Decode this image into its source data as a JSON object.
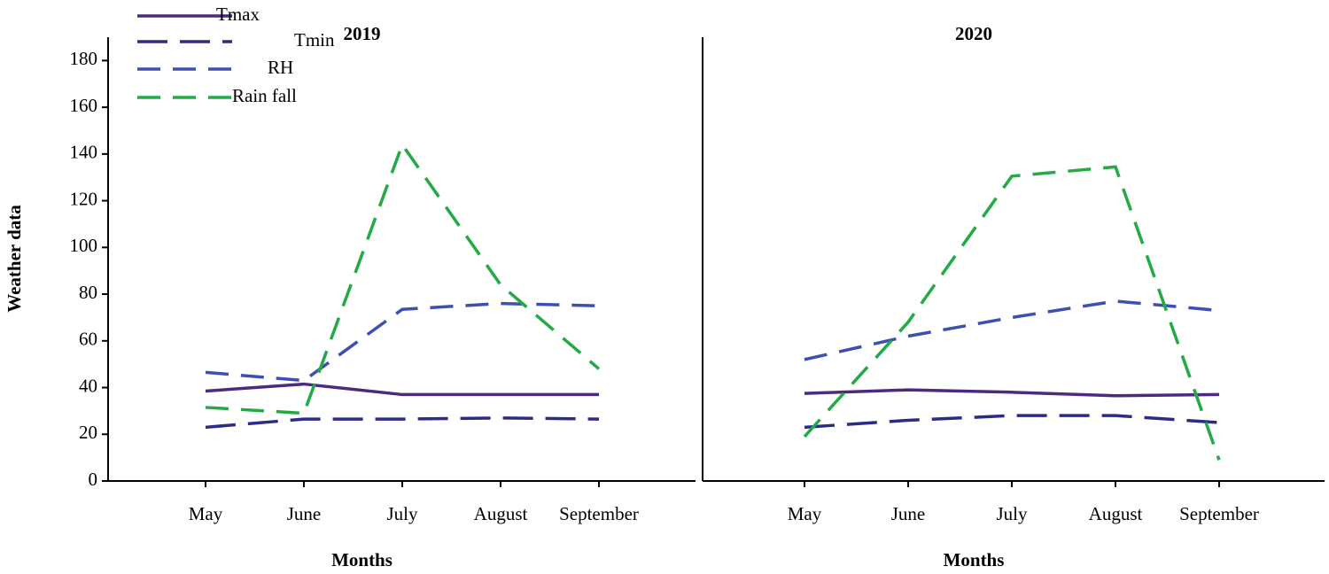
{
  "chart_data": [
    {
      "type": "line",
      "title": "2019",
      "x_label": "Months",
      "y_label": "Weather data",
      "categories": [
        "May",
        "June",
        "July",
        "August",
        "September"
      ],
      "ylim": [
        0,
        190
      ],
      "yticks": [
        0,
        20,
        40,
        60,
        80,
        100,
        120,
        140,
        160,
        180
      ],
      "series": [
        {
          "name": "Tmax",
          "color": "#4b2a7f",
          "dash": "solid",
          "values": [
            38.5,
            41.5,
            37,
            37,
            37
          ]
        },
        {
          "name": "Tmin",
          "color": "#2c2c86",
          "dash": "long",
          "values": [
            23,
            26.5,
            26.5,
            27,
            26.5
          ]
        },
        {
          "name": "RH",
          "color": "#3d4fb0",
          "dash": "medium",
          "values": [
            46.5,
            43,
            73.5,
            76,
            75
          ]
        },
        {
          "name": "Rain fall",
          "color": "#22aa44",
          "dash": "medium",
          "values": [
            31.5,
            29,
            144,
            84,
            48
          ]
        }
      ]
    },
    {
      "type": "line",
      "title": "2020",
      "x_label": "Months",
      "categories": [
        "May",
        "June",
        "July",
        "August",
        "September"
      ],
      "ylim": [
        0,
        190
      ],
      "series": [
        {
          "color": "#4b2a7f",
          "dash": "solid",
          "values": [
            37.5,
            39,
            38,
            36.5,
            37
          ]
        },
        {
          "color": "#2c2c86",
          "dash": "long",
          "values": [
            23,
            26,
            28,
            28,
            25
          ]
        },
        {
          "color": "#3d4fb0",
          "dash": "medium",
          "values": [
            52,
            62,
            70,
            77,
            73
          ]
        },
        {
          "color": "#22aa44",
          "dash": "medium",
          "values": [
            19,
            68,
            130.5,
            134.5,
            9
          ]
        }
      ]
    }
  ]
}
